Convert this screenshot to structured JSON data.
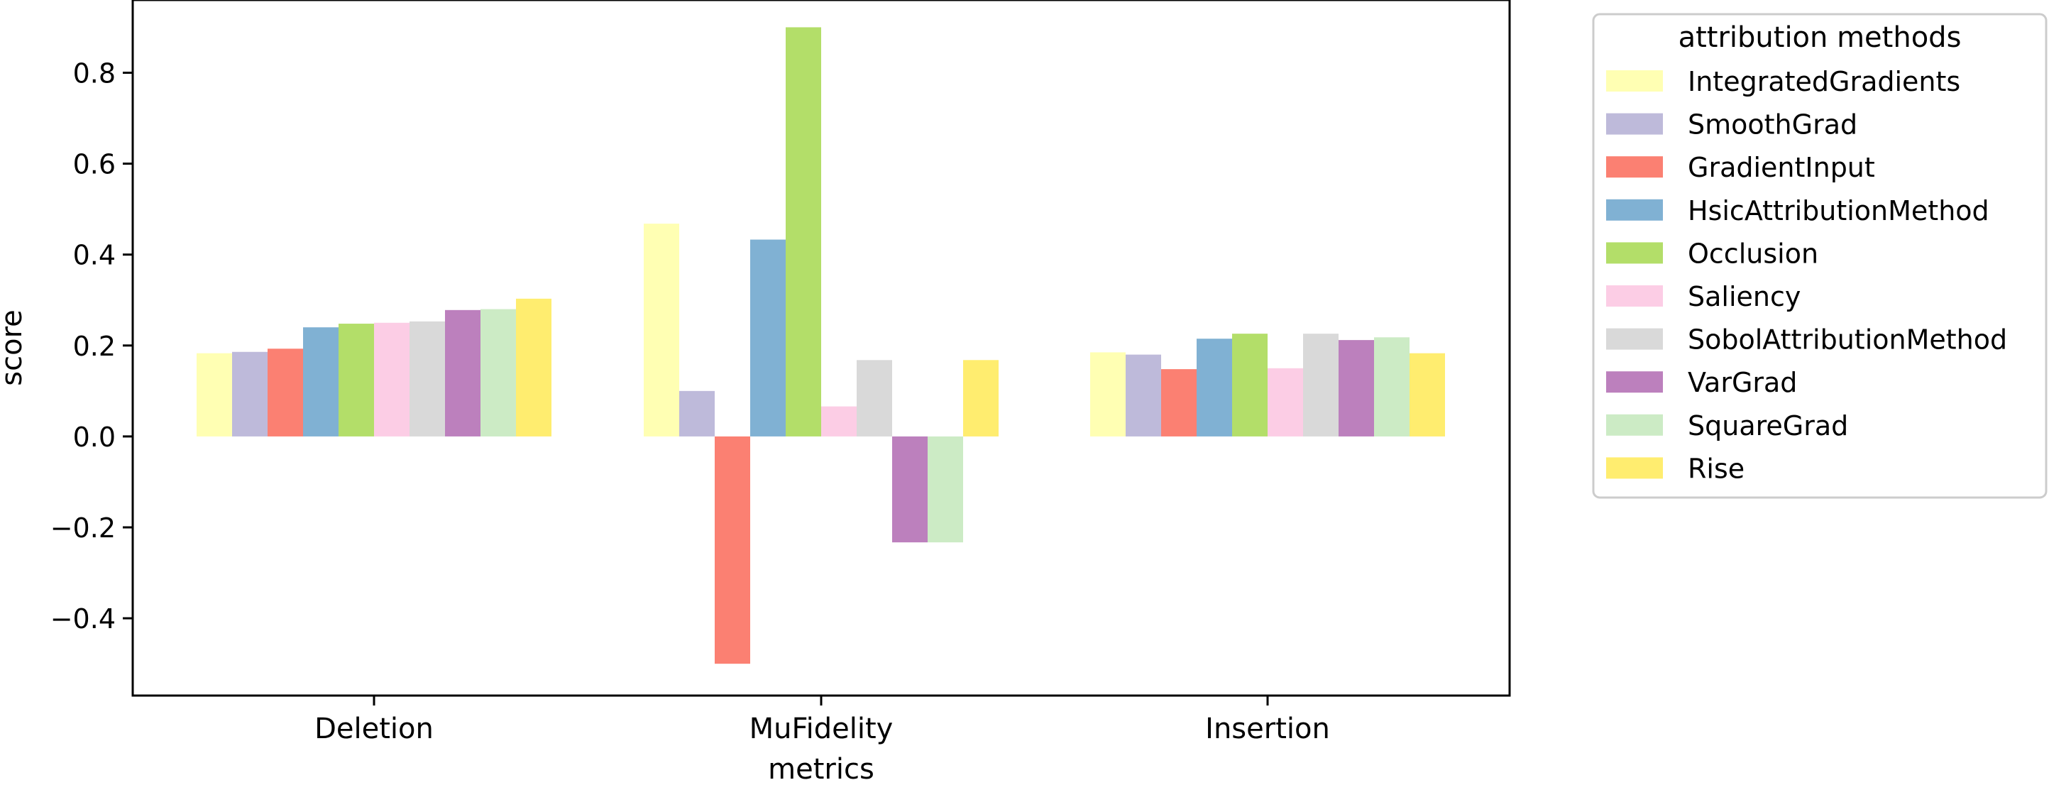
{
  "chart_data": {
    "type": "bar",
    "xlabel": "metrics",
    "ylabel": "score",
    "ylim": [
      -0.57,
      0.96
    ],
    "yticks": [
      -0.4,
      -0.2,
      0.0,
      0.2,
      0.4,
      0.6,
      0.8
    ],
    "ytick_labels": [
      "−0.4",
      "−0.2",
      "0.0",
      "0.2",
      "0.4",
      "0.6",
      "0.8"
    ],
    "grid": false,
    "legend": {
      "title": "attribution methods",
      "placement": "outside-right"
    },
    "categories": [
      "Deletion",
      "MuFidelity",
      "Insertion"
    ],
    "series": [
      {
        "name": "IntegratedGradients",
        "color": "#ffffb3",
        "values": [
          0.183,
          0.468,
          0.185
        ]
      },
      {
        "name": "SmoothGrad",
        "color": "#bebada",
        "values": [
          0.186,
          0.1,
          0.18
        ]
      },
      {
        "name": "GradientInput",
        "color": "#fb8072",
        "values": [
          0.193,
          -0.5,
          0.148
        ]
      },
      {
        "name": "HsicAttributionMethod",
        "color": "#80b1d3",
        "values": [
          0.24,
          0.433,
          0.215
        ]
      },
      {
        "name": "Occlusion",
        "color": "#b3de69",
        "values": [
          0.248,
          0.9,
          0.226
        ]
      },
      {
        "name": "Saliency",
        "color": "#fccde5",
        "values": [
          0.25,
          0.066,
          0.15
        ]
      },
      {
        "name": "SobolAttributionMethod",
        "color": "#d9d9d9",
        "values": [
          0.253,
          0.168,
          0.226
        ]
      },
      {
        "name": "VarGrad",
        "color": "#bc80bd",
        "values": [
          0.278,
          -0.233,
          0.212
        ]
      },
      {
        "name": "SquareGrad",
        "color": "#ccebc5",
        "values": [
          0.28,
          -0.233,
          0.218
        ]
      },
      {
        "name": "Rise",
        "color": "#ffed6f",
        "values": [
          0.303,
          0.168,
          0.183
        ]
      }
    ]
  }
}
